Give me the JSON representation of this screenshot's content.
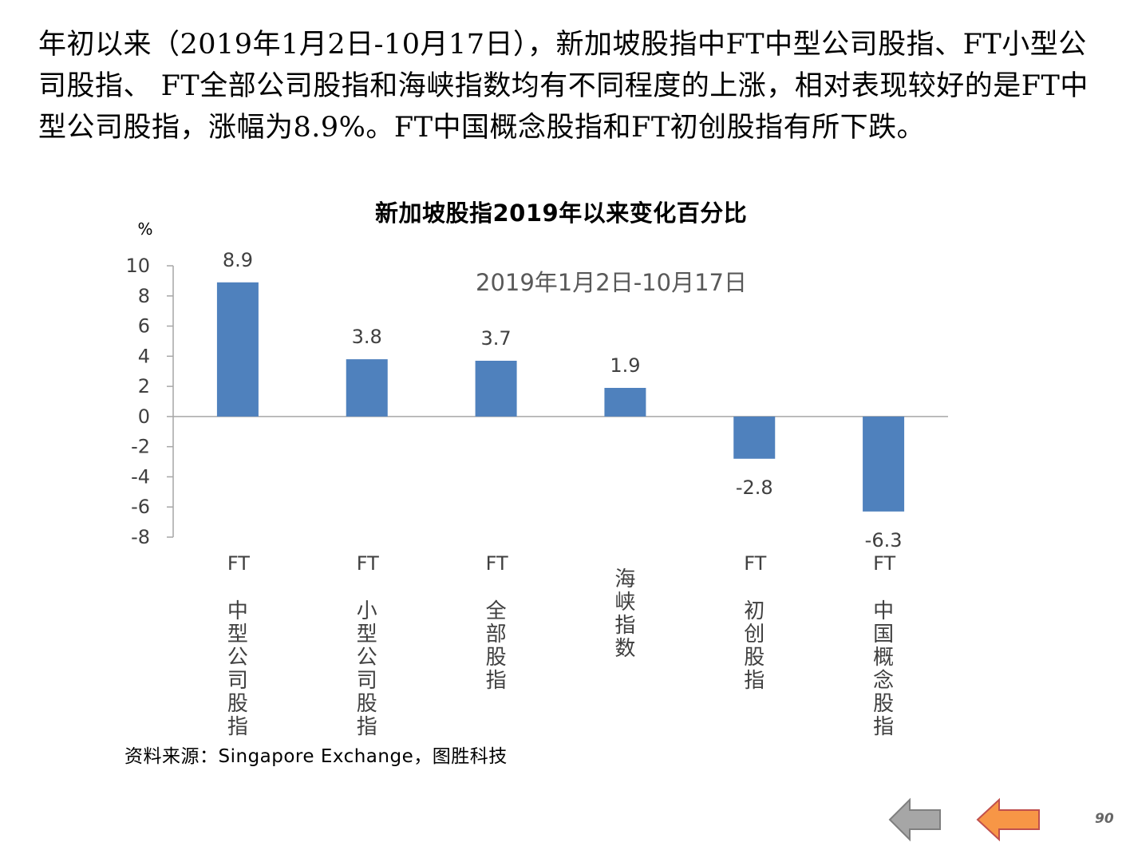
{
  "intro_text": "年初以来（2019年1月2日-10月17日），新加坡股指中FT中型公司股指、FT小型公司股指、 FT全部公司股指和海峡指数均有不同程度的上涨，相对表现较好的是FT中型公司股指，涨幅为8.9%。FT中国概念股指和FT初创股指有所下跌。",
  "chart_data": {
    "type": "bar",
    "title": "新加坡股指2019年以来变化百分比",
    "subtitle": "2019年1月2日-10月17日",
    "ylabel": "%",
    "xlabel": "",
    "ylim": [
      -8,
      10
    ],
    "yticks": [
      10,
      8,
      6,
      4,
      2,
      0,
      -2,
      -4,
      -6,
      -8
    ],
    "categories": [
      "FT中型公司股指",
      "FT小型公司股指",
      "FT全部股指",
      "海峡指数",
      "FT初创股指",
      "FT中国概念股指"
    ],
    "values": [
      8.9,
      3.8,
      3.7,
      1.9,
      -2.8,
      -6.3
    ],
    "data_labels": [
      "8.9",
      "3.8",
      "3.7",
      "1.9",
      "-2.8",
      "-6.3"
    ],
    "grid": false,
    "bar_color": "#4f81bd",
    "axis_color": "#a6a6a6"
  },
  "source_text": "资料来源：Singapore Exchange，图胜科技",
  "page_number": "90",
  "nav": {
    "back_icon": "left-arrow-icon",
    "back_color": "#a6a6a6",
    "home_icon": "left-arrow-icon",
    "home_color": "#f79646"
  }
}
